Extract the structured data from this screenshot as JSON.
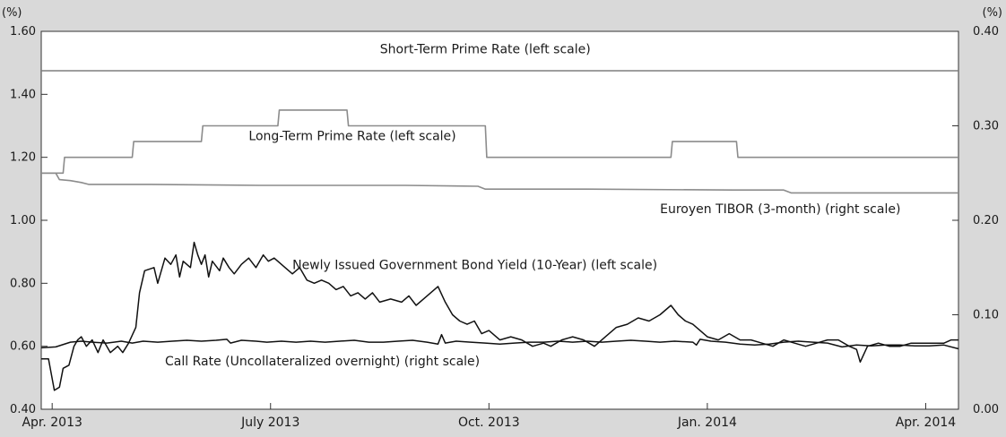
{
  "chart_data": {
    "type": "line",
    "title": "",
    "left_axis": {
      "unit": "(%)",
      "range": [
        0.4,
        1.6
      ],
      "ticks": [
        "0.40",
        "0.60",
        "0.80",
        "1.00",
        "1.20",
        "1.40",
        "1.60"
      ]
    },
    "right_axis": {
      "unit": "(%)",
      "range": [
        0.0,
        0.4
      ],
      "ticks": [
        "0.00",
        "0.10",
        "0.20",
        "0.30",
        "0.40"
      ]
    },
    "x_range": [
      0,
      12.6
    ],
    "x_ticks": [
      {
        "x": 0.15,
        "label": "Apr. 2013"
      },
      {
        "x": 3.15,
        "label": "July 2013"
      },
      {
        "x": 6.15,
        "label": "Oct. 2013"
      },
      {
        "x": 9.15,
        "label": "Jan. 2014"
      },
      {
        "x": 12.15,
        "label": "Apr. 2014"
      }
    ],
    "series": [
      {
        "name": "Short-Term Prime Rate (left scale)",
        "axis": "left",
        "color": "#7f7f7f",
        "label": "Short-Term Prime Rate (left scale)",
        "points": [
          [
            0,
            1.475
          ],
          [
            12.6,
            1.475
          ]
        ]
      },
      {
        "name": "Long-Term Prime Rate (left scale)",
        "axis": "left",
        "color": "#8c8c8c",
        "label": "Long-Term Prime Rate (left scale)",
        "points": [
          [
            0,
            1.15
          ],
          [
            0.3,
            1.15
          ],
          [
            0.32,
            1.2
          ],
          [
            1.25,
            1.2
          ],
          [
            1.27,
            1.25
          ],
          [
            2.2,
            1.25
          ],
          [
            2.22,
            1.3
          ],
          [
            3.25,
            1.3
          ],
          [
            3.27,
            1.35
          ],
          [
            4.2,
            1.35
          ],
          [
            4.22,
            1.3
          ],
          [
            6.1,
            1.3
          ],
          [
            6.12,
            1.2
          ],
          [
            8.65,
            1.2
          ],
          [
            8.67,
            1.25
          ],
          [
            9.55,
            1.25
          ],
          [
            9.57,
            1.2
          ],
          [
            12.6,
            1.2
          ]
        ]
      },
      {
        "name": "Euroyen TIBOR (3-month) (right scale)",
        "axis": "right",
        "color": "#8c8c8c",
        "label": "Euroyen TIBOR  (3-month) (right scale)",
        "points": [
          [
            0,
            0.25
          ],
          [
            0.2,
            0.25
          ],
          [
            0.25,
            0.243
          ],
          [
            0.4,
            0.242
          ],
          [
            0.55,
            0.24
          ],
          [
            0.65,
            0.238
          ],
          [
            1.5,
            0.238
          ],
          [
            3.0,
            0.237
          ],
          [
            5.0,
            0.237
          ],
          [
            6.0,
            0.236
          ],
          [
            6.1,
            0.233
          ],
          [
            7.5,
            0.233
          ],
          [
            9.5,
            0.232
          ],
          [
            10.2,
            0.232
          ],
          [
            10.3,
            0.229
          ],
          [
            12.6,
            0.229
          ]
        ]
      },
      {
        "name": "Newly Issued Government Bond Yield (10-Year) (left scale)",
        "axis": "left",
        "color": "#111111",
        "label": "Newly Issued Government Bond Yield (10-Year) (left scale)",
        "points": [
          [
            0,
            0.56
          ],
          [
            0.1,
            0.56
          ],
          [
            0.18,
            0.46
          ],
          [
            0.25,
            0.47
          ],
          [
            0.3,
            0.53
          ],
          [
            0.38,
            0.54
          ],
          [
            0.45,
            0.6
          ],
          [
            0.5,
            0.62
          ],
          [
            0.55,
            0.63
          ],
          [
            0.62,
            0.6
          ],
          [
            0.7,
            0.62
          ],
          [
            0.78,
            0.58
          ],
          [
            0.85,
            0.62
          ],
          [
            0.95,
            0.58
          ],
          [
            1.05,
            0.6
          ],
          [
            1.12,
            0.58
          ],
          [
            1.2,
            0.61
          ],
          [
            1.3,
            0.66
          ],
          [
            1.35,
            0.77
          ],
          [
            1.42,
            0.84
          ],
          [
            1.55,
            0.85
          ],
          [
            1.6,
            0.8
          ],
          [
            1.7,
            0.88
          ],
          [
            1.78,
            0.86
          ],
          [
            1.85,
            0.89
          ],
          [
            1.9,
            0.82
          ],
          [
            1.95,
            0.87
          ],
          [
            2.05,
            0.85
          ],
          [
            2.1,
            0.93
          ],
          [
            2.15,
            0.89
          ],
          [
            2.2,
            0.86
          ],
          [
            2.25,
            0.89
          ],
          [
            2.3,
            0.82
          ],
          [
            2.35,
            0.87
          ],
          [
            2.45,
            0.84
          ],
          [
            2.5,
            0.88
          ],
          [
            2.58,
            0.85
          ],
          [
            2.65,
            0.83
          ],
          [
            2.75,
            0.86
          ],
          [
            2.85,
            0.88
          ],
          [
            2.95,
            0.85
          ],
          [
            3.05,
            0.89
          ],
          [
            3.12,
            0.87
          ],
          [
            3.2,
            0.88
          ],
          [
            3.35,
            0.85
          ],
          [
            3.45,
            0.83
          ],
          [
            3.55,
            0.85
          ],
          [
            3.65,
            0.81
          ],
          [
            3.75,
            0.8
          ],
          [
            3.85,
            0.81
          ],
          [
            3.95,
            0.8
          ],
          [
            4.05,
            0.78
          ],
          [
            4.15,
            0.79
          ],
          [
            4.25,
            0.76
          ],
          [
            4.35,
            0.77
          ],
          [
            4.45,
            0.75
          ],
          [
            4.55,
            0.77
          ],
          [
            4.65,
            0.74
          ],
          [
            4.8,
            0.75
          ],
          [
            4.95,
            0.74
          ],
          [
            5.05,
            0.76
          ],
          [
            5.15,
            0.73
          ],
          [
            5.25,
            0.75
          ],
          [
            5.35,
            0.77
          ],
          [
            5.45,
            0.79
          ],
          [
            5.55,
            0.74
          ],
          [
            5.65,
            0.7
          ],
          [
            5.75,
            0.68
          ],
          [
            5.85,
            0.67
          ],
          [
            5.95,
            0.68
          ],
          [
            6.05,
            0.64
          ],
          [
            6.15,
            0.65
          ],
          [
            6.3,
            0.62
          ],
          [
            6.45,
            0.63
          ],
          [
            6.6,
            0.62
          ],
          [
            6.75,
            0.6
          ],
          [
            6.9,
            0.61
          ],
          [
            7.0,
            0.6
          ],
          [
            7.15,
            0.62
          ],
          [
            7.3,
            0.63
          ],
          [
            7.45,
            0.62
          ],
          [
            7.6,
            0.6
          ],
          [
            7.75,
            0.63
          ],
          [
            7.9,
            0.66
          ],
          [
            8.05,
            0.67
          ],
          [
            8.2,
            0.69
          ],
          [
            8.35,
            0.68
          ],
          [
            8.5,
            0.7
          ],
          [
            8.65,
            0.73
          ],
          [
            8.75,
            0.7
          ],
          [
            8.85,
            0.68
          ],
          [
            8.95,
            0.67
          ],
          [
            9.05,
            0.65
          ],
          [
            9.15,
            0.63
          ],
          [
            9.3,
            0.62
          ],
          [
            9.45,
            0.64
          ],
          [
            9.6,
            0.62
          ],
          [
            9.75,
            0.62
          ],
          [
            9.9,
            0.61
          ],
          [
            10.05,
            0.6
          ],
          [
            10.2,
            0.62
          ],
          [
            10.35,
            0.61
          ],
          [
            10.5,
            0.6
          ],
          [
            10.65,
            0.61
          ],
          [
            10.8,
            0.62
          ],
          [
            10.95,
            0.62
          ],
          [
            11.1,
            0.6
          ],
          [
            11.2,
            0.59
          ],
          [
            11.25,
            0.55
          ],
          [
            11.35,
            0.6
          ],
          [
            11.5,
            0.61
          ],
          [
            11.65,
            0.6
          ],
          [
            11.8,
            0.6
          ],
          [
            11.95,
            0.61
          ],
          [
            12.1,
            0.61
          ],
          [
            12.25,
            0.61
          ],
          [
            12.4,
            0.61
          ],
          [
            12.5,
            0.62
          ],
          [
            12.6,
            0.62
          ]
        ]
      },
      {
        "name": "Call Rate (Uncollateralized overnight) (right scale)",
        "axis": "right",
        "color": "#111111",
        "label": "Call Rate (Uncollateralized overnight) (right scale)",
        "points": [
          [
            0,
            0.065
          ],
          [
            0.2,
            0.066
          ],
          [
            0.4,
            0.071
          ],
          [
            0.55,
            0.072
          ],
          [
            0.7,
            0.071
          ],
          [
            0.9,
            0.07
          ],
          [
            1.1,
            0.072
          ],
          [
            1.25,
            0.07
          ],
          [
            1.4,
            0.072
          ],
          [
            1.6,
            0.071
          ],
          [
            1.8,
            0.072
          ],
          [
            2.0,
            0.073
          ],
          [
            2.2,
            0.072
          ],
          [
            2.4,
            0.073
          ],
          [
            2.55,
            0.074
          ],
          [
            2.6,
            0.07
          ],
          [
            2.75,
            0.073
          ],
          [
            2.95,
            0.072
          ],
          [
            3.1,
            0.071
          ],
          [
            3.3,
            0.072
          ],
          [
            3.5,
            0.071
          ],
          [
            3.7,
            0.072
          ],
          [
            3.9,
            0.071
          ],
          [
            4.1,
            0.072
          ],
          [
            4.3,
            0.073
          ],
          [
            4.5,
            0.071
          ],
          [
            4.7,
            0.071
          ],
          [
            4.9,
            0.072
          ],
          [
            5.1,
            0.073
          ],
          [
            5.3,
            0.071
          ],
          [
            5.45,
            0.069
          ],
          [
            5.5,
            0.079
          ],
          [
            5.55,
            0.07
          ],
          [
            5.7,
            0.072
          ],
          [
            5.9,
            0.071
          ],
          [
            6.1,
            0.07
          ],
          [
            6.3,
            0.069
          ],
          [
            6.5,
            0.07
          ],
          [
            6.7,
            0.071
          ],
          [
            6.9,
            0.071
          ],
          [
            7.1,
            0.072
          ],
          [
            7.3,
            0.071
          ],
          [
            7.5,
            0.072
          ],
          [
            7.7,
            0.071
          ],
          [
            7.9,
            0.072
          ],
          [
            8.1,
            0.073
          ],
          [
            8.3,
            0.072
          ],
          [
            8.5,
            0.071
          ],
          [
            8.7,
            0.072
          ],
          [
            8.95,
            0.071
          ],
          [
            9.0,
            0.068
          ],
          [
            9.05,
            0.074
          ],
          [
            9.2,
            0.072
          ],
          [
            9.4,
            0.071
          ],
          [
            9.6,
            0.069
          ],
          [
            9.8,
            0.068
          ],
          [
            10.0,
            0.069
          ],
          [
            10.2,
            0.071
          ],
          [
            10.4,
            0.072
          ],
          [
            10.6,
            0.071
          ],
          [
            10.8,
            0.07
          ],
          [
            11.0,
            0.066
          ],
          [
            11.2,
            0.068
          ],
          [
            11.4,
            0.067
          ],
          [
            11.6,
            0.068
          ],
          [
            11.8,
            0.068
          ],
          [
            12.0,
            0.067
          ],
          [
            12.2,
            0.067
          ],
          [
            12.4,
            0.068
          ],
          [
            12.6,
            0.064
          ]
        ]
      }
    ],
    "annotations": [
      {
        "text": "Short-Term Prime Rate (left scale)",
        "x": 6.1,
        "axis": "left",
        "y": 1.53,
        "anchor": "middle"
      },
      {
        "text": "Long-Term Prime Rate (left scale)",
        "x": 2.85,
        "axis": "left",
        "y": 1.255,
        "anchor": "start"
      },
      {
        "text": "Euroyen TIBOR  (3-month) (right scale)",
        "x": 8.5,
        "axis": "right",
        "y": 0.2075,
        "anchor": "start"
      },
      {
        "text": "Newly Issued Government Bond Yield (10-Year) (left scale)",
        "x": 3.45,
        "axis": "left",
        "y": 0.845,
        "anchor": "start"
      },
      {
        "text": "Call Rate (Uncollateralized overnight) (right scale)",
        "x": 1.7,
        "axis": "right",
        "y": 0.0465,
        "anchor": "start"
      }
    ]
  }
}
